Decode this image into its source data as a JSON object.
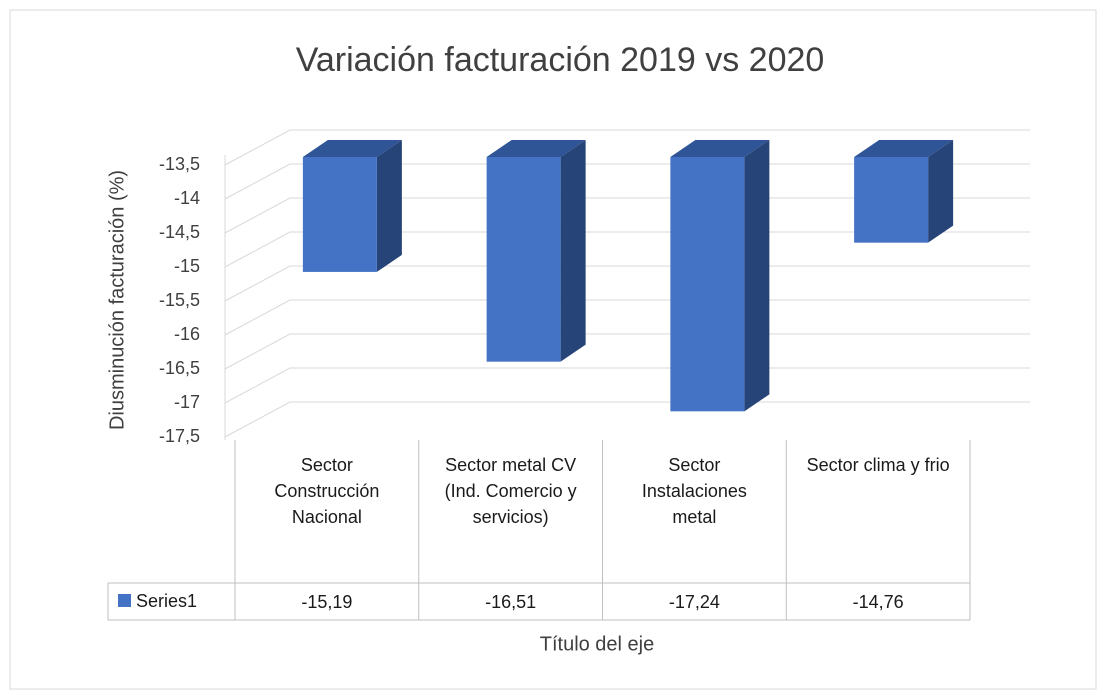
{
  "chart_data": {
    "type": "bar3d",
    "title": "Variación facturación 2019 vs 2020",
    "y_axis_label": "Diusminución facturación (%)",
    "x_axis_label": "Título del eje",
    "categories": [
      "Sector Construcción Nacional",
      "Sector metal CV (Ind. Comercio y servicios)",
      "Sector Instalaciones metal",
      "Sector clima y frio"
    ],
    "series": [
      {
        "name": "Series1",
        "color": "#4472c4",
        "values": [
          -15.19,
          -16.51,
          -17.24,
          -14.76
        ],
        "value_labels": [
          "-15,19",
          "-16,51",
          "-17,24",
          "-14,76"
        ]
      }
    ],
    "ylim": [
      -17.5,
      -13.5
    ],
    "yticks": [
      {
        "value": -13.5,
        "label": "-13,5"
      },
      -14,
      {
        "value": -14.5,
        "label": "-14,5"
      },
      -15,
      {
        "value": -15.5,
        "label": "-15,5"
      },
      -16,
      {
        "value": -16.5,
        "label": "-16,5"
      },
      -17,
      {
        "value": -17.5,
        "label": "-17,5"
      }
    ],
    "grid": true,
    "data_table": true
  }
}
